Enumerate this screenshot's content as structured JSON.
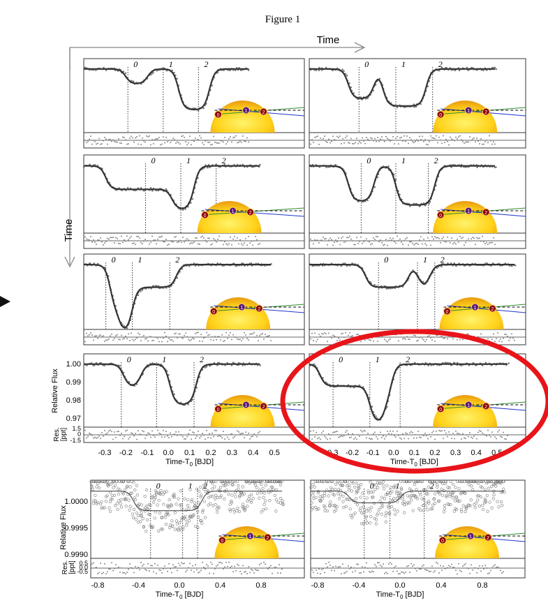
{
  "figure": {
    "title": "Figure 1",
    "time_top": "Time",
    "time_left": "Time"
  },
  "panels": [
    {
      "labels": [
        "0",
        "1",
        "2"
      ]
    },
    {
      "labels": [
        "0",
        "1",
        "2"
      ]
    },
    {
      "labels": [
        "0",
        "1",
        "2"
      ]
    },
    {
      "labels": [
        "0",
        "1",
        "2"
      ]
    },
    {
      "labels": [
        "0",
        "1",
        "2"
      ]
    },
    {
      "labels": [
        "0",
        "1",
        "2"
      ]
    },
    {
      "labels": [
        "0",
        "1",
        "2"
      ]
    },
    {
      "labels": [
        "0",
        "1",
        "2"
      ]
    },
    {
      "labels": [
        "0",
        "1",
        "2"
      ]
    },
    {
      "labels": [
        "0",
        "1",
        "2"
      ]
    }
  ],
  "upper_axes": {
    "ylabel": "Relative Flux",
    "res_label": [
      "Res.",
      "[ppt]"
    ],
    "yticks": [
      "1.00",
      "0.99",
      "0.98",
      "0.97"
    ],
    "res_ticks": [
      "1.5",
      "0",
      "-1.5"
    ],
    "xticks": [
      "-0.3",
      "-0.2",
      "-0.1",
      "0.0",
      "0.1",
      "0.2",
      "0.3",
      "0.4",
      "0.5"
    ],
    "xlabel": {
      "main": "Time-T",
      "sub": "0",
      "unit": " [BJD]"
    }
  },
  "lower_axes": {
    "ylabel": "Relative Flux",
    "res_label": [
      "Res.",
      "[ppt]"
    ],
    "yticks": [
      "1.0000",
      "0.9995",
      "0.9990"
    ],
    "res_ticks": [
      "0.5",
      "0.0",
      "-0.5"
    ],
    "xticks": [
      "-0.8",
      "-0.4",
      "0.0",
      "0.4",
      "0.8"
    ],
    "xlabel": {
      "main": "Time-T",
      "sub": "0",
      "unit": " [BJD]"
    }
  }
}
